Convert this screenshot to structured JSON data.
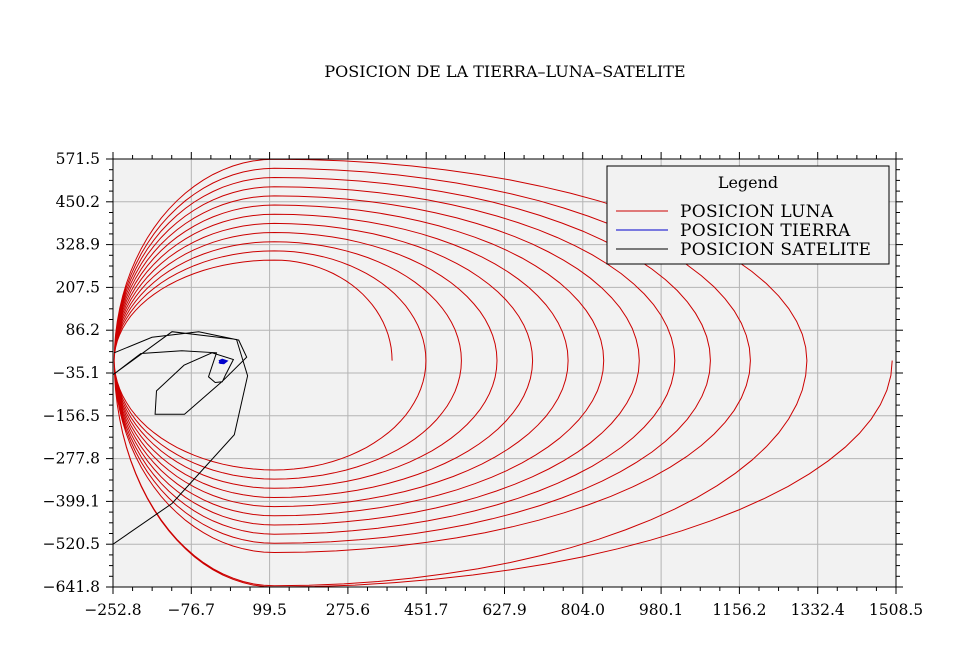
{
  "chart_data": {
    "type": "line",
    "title": "POSICION DE LA TIERRA–LUNA–SATELITE",
    "xlabel": "",
    "ylabel": "",
    "xlim": [
      -252.8,
      1508.5
    ],
    "ylim": [
      -641.8,
      571.5
    ],
    "x_ticks": [
      "−252.8",
      "−76.7",
      "99.5",
      "275.6",
      "451.7",
      "627.9",
      "804.0",
      "980.1",
      "1156.2",
      "1332.4",
      "1508.5"
    ],
    "y_ticks": [
      "571.5",
      "450.2",
      "328.9",
      "207.5",
      "86.2",
      "−35.1",
      "−156.5",
      "−277.8",
      "−399.1",
      "−520.5",
      "−641.8"
    ],
    "grid": true,
    "background": "#f2f2f2",
    "legend": {
      "title": "Legend",
      "placement": "top-right",
      "entries": [
        {
          "label": "POSICION LUNA",
          "color": "#cc0000"
        },
        {
          "label": "POSICION TIERRA",
          "color": "#0000cc"
        },
        {
          "label": "POSICION SATELITE",
          "color": "#000000"
        }
      ]
    },
    "series": [
      {
        "name": "POSICION LUNA",
        "color": "#cc0000",
        "shape": "expanding spiral",
        "start": [
          375,
          0
        ],
        "right_extents": [
          375,
          451,
          531,
          611,
          691,
          771,
          851,
          931,
          1011,
          1091,
          1181,
          1308,
          1500
        ],
        "top_extents": [
          285,
          311,
          337,
          363,
          389,
          415,
          441,
          467,
          493,
          519,
          545,
          571
        ],
        "left_extent": -250,
        "bottom_extent": -641.8
      },
      {
        "name": "POSICION TIERRA",
        "color": "#0000cc",
        "points": [
          [
            -14,
            -3
          ],
          [
            -7,
            1
          ],
          [
            0,
            -2
          ],
          [
            -4,
            -6
          ],
          [
            -11,
            -5
          ],
          [
            -14,
            -3
          ]
        ]
      },
      {
        "name": "POSICION SATELITE",
        "color": "#000000",
        "points": [
          [
            -250,
            22
          ],
          [
            -165,
            66
          ],
          [
            -60,
            82
          ],
          [
            30,
            58
          ],
          [
            48,
            10
          ],
          [
            -8,
            -60
          ],
          [
            -92,
            -152
          ],
          [
            -158,
            -152
          ],
          [
            -155,
            -86
          ],
          [
            -93,
            -13
          ],
          [
            -30,
            22
          ],
          [
            18,
            3
          ],
          [
            0,
            -41
          ],
          [
            -7,
            -60
          ],
          [
            -23,
            -62
          ],
          [
            -38,
            -46
          ],
          [
            -20,
            22
          ],
          [
            -98,
            28
          ],
          [
            -190,
            20
          ],
          [
            -252.8,
            -40
          ],
          [
            -252.8,
            -40
          ],
          [
            -120,
            82
          ],
          [
            25,
            60
          ],
          [
            50,
            -43
          ],
          [
            20,
            -210
          ],
          [
            -120,
            -405
          ],
          [
            -252.8,
            -520.5
          ]
        ]
      }
    ]
  }
}
